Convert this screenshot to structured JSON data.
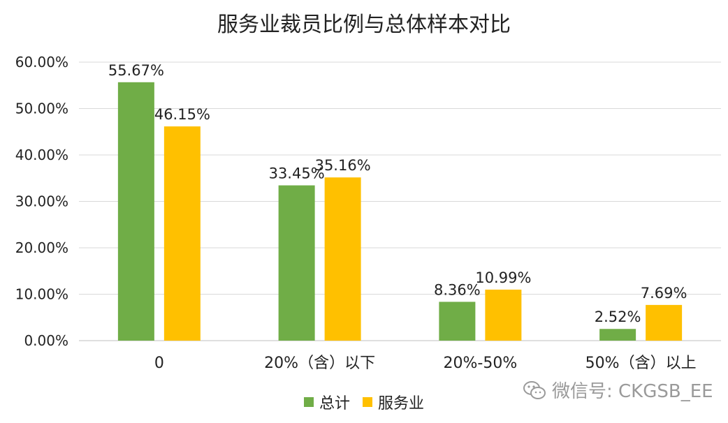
{
  "chart_data": {
    "type": "bar",
    "title": "服务业裁员比例与总体样本对比",
    "categories": [
      "0",
      "20%（含）以下",
      "20%-50%",
      "50%（含）以上"
    ],
    "series": [
      {
        "name": "总计",
        "color": "#70AD47",
        "values": [
          55.67,
          33.45,
          8.36,
          2.52
        ],
        "labels": [
          "55.67%",
          "33.45%",
          "8.36%",
          "2.52%"
        ]
      },
      {
        "name": "服务业",
        "color": "#FFC000",
        "values": [
          46.15,
          35.16,
          10.99,
          7.69
        ],
        "labels": [
          "46.15%",
          "35.16%",
          "10.99%",
          "7.69%"
        ]
      }
    ],
    "ylim": [
      0,
      60
    ],
    "yticks": [
      "0.00%",
      "10.00%",
      "20.00%",
      "30.00%",
      "40.00%",
      "50.00%",
      "60.00%"
    ],
    "grid": true,
    "legend_position": "bottom"
  },
  "watermark": {
    "text": "微信号: CKGSB_EE",
    "icon": "wechat-icon"
  }
}
